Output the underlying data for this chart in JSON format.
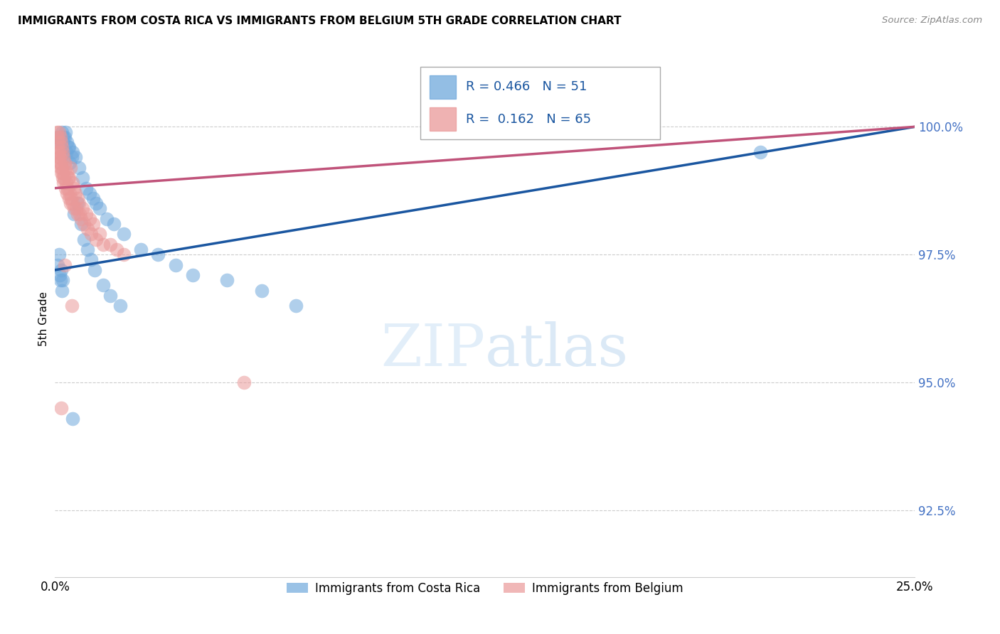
{
  "title": "IMMIGRANTS FROM COSTA RICA VS IMMIGRANTS FROM BELGIUM 5TH GRADE CORRELATION CHART",
  "source": "Source: ZipAtlas.com",
  "ylabel": "5th Grade",
  "ylabel_tick_vals": [
    92.5,
    95.0,
    97.5,
    100.0
  ],
  "xlim": [
    0.0,
    25.0
  ],
  "ylim": [
    91.2,
    101.3
  ],
  "blue_color": "#6fa8dc",
  "pink_color": "#ea9999",
  "blue_line_color": "#1a56a0",
  "pink_line_color": "#c0537a",
  "R_blue": 0.466,
  "N_blue": 51,
  "R_pink": 0.162,
  "N_pink": 65,
  "blue_x": [
    0.1,
    0.15,
    0.2,
    0.25,
    0.3,
    0.35,
    0.4,
    0.5,
    0.6,
    0.7,
    0.8,
    0.9,
    1.0,
    1.1,
    1.2,
    1.3,
    1.5,
    1.7,
    2.0,
    2.5,
    3.0,
    3.5,
    4.0,
    5.0,
    6.0,
    7.0,
    0.12,
    0.18,
    0.22,
    0.28,
    0.38,
    0.48,
    0.55,
    0.65,
    0.75,
    0.85,
    0.95,
    1.05,
    1.15,
    1.4,
    1.6,
    1.9,
    0.08,
    0.13,
    0.16,
    0.19,
    0.23,
    0.32,
    0.42,
    0.52,
    20.5
  ],
  "blue_y": [
    99.8,
    99.7,
    99.9,
    99.8,
    99.9,
    99.7,
    99.6,
    99.5,
    99.4,
    99.2,
    99.0,
    98.8,
    98.7,
    98.6,
    98.5,
    98.4,
    98.2,
    98.1,
    97.9,
    97.6,
    97.5,
    97.3,
    97.1,
    97.0,
    96.8,
    96.5,
    97.5,
    97.2,
    97.0,
    99.8,
    99.6,
    99.4,
    98.3,
    98.5,
    98.1,
    97.8,
    97.6,
    97.4,
    97.2,
    96.9,
    96.7,
    96.5,
    97.3,
    97.1,
    97.0,
    96.8,
    99.7,
    99.5,
    99.3,
    94.3,
    99.5
  ],
  "pink_x": [
    0.05,
    0.08,
    0.1,
    0.12,
    0.15,
    0.18,
    0.2,
    0.22,
    0.25,
    0.28,
    0.3,
    0.35,
    0.4,
    0.45,
    0.5,
    0.55,
    0.6,
    0.65,
    0.7,
    0.8,
    0.9,
    1.0,
    1.1,
    1.3,
    1.6,
    2.0,
    0.08,
    0.1,
    0.12,
    0.15,
    0.18,
    0.22,
    0.25,
    0.3,
    0.35,
    0.4,
    0.45,
    0.55,
    0.65,
    0.75,
    0.85,
    0.95,
    1.05,
    1.2,
    1.4,
    1.8,
    0.07,
    0.11,
    0.13,
    0.16,
    0.19,
    0.23,
    0.27,
    0.32,
    0.37,
    0.42,
    0.47,
    0.52,
    0.62,
    0.72,
    5.5,
    0.17,
    0.28,
    0.38,
    0.48
  ],
  "pink_y": [
    99.9,
    99.8,
    99.7,
    99.9,
    99.8,
    99.7,
    99.6,
    99.5,
    99.4,
    99.3,
    99.2,
    99.1,
    99.0,
    99.2,
    98.9,
    98.8,
    98.7,
    98.6,
    98.5,
    98.4,
    98.3,
    98.2,
    98.1,
    97.9,
    97.7,
    97.5,
    99.5,
    99.4,
    99.3,
    99.2,
    99.1,
    99.0,
    98.9,
    98.8,
    98.7,
    98.6,
    98.5,
    98.4,
    98.3,
    98.2,
    98.1,
    98.0,
    97.9,
    97.8,
    97.7,
    97.6,
    99.6,
    99.5,
    99.4,
    99.3,
    99.2,
    99.1,
    99.0,
    98.9,
    98.8,
    98.7,
    98.6,
    98.5,
    98.4,
    98.3,
    95.0,
    94.5,
    97.3,
    99.0,
    96.5
  ],
  "blue_trendline_x": [
    0.0,
    25.0
  ],
  "blue_trendline_y": [
    97.2,
    100.0
  ],
  "pink_trendline_x": [
    0.0,
    25.0
  ],
  "pink_trendline_y": [
    98.8,
    100.0
  ]
}
